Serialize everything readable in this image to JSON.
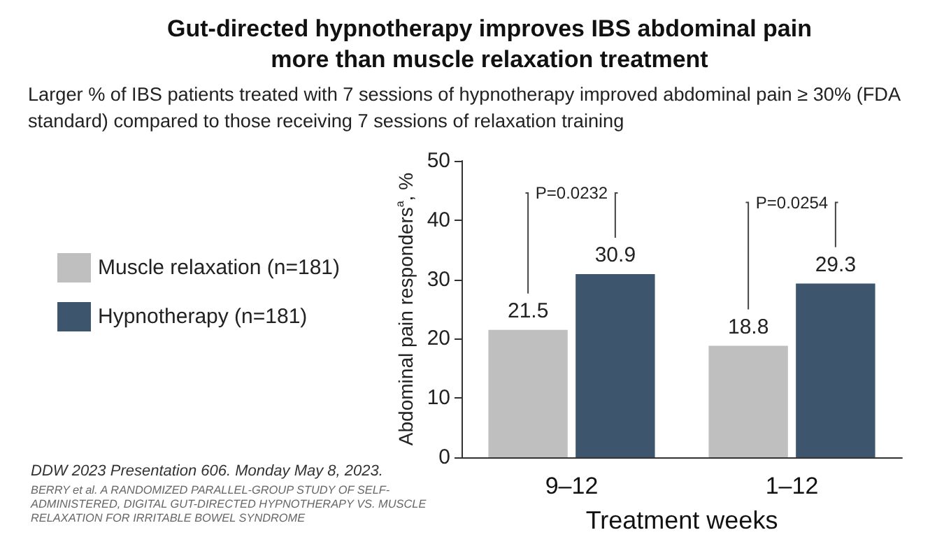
{
  "chart_data": {
    "type": "bar",
    "title": "Gut-directed hypnotherapy improves IBS abdominal pain more than muscle relaxation treatment",
    "subtitle": "Larger % of IBS patients treated with 7 sessions of hypnotherapy improved abdominal pain ≥ 30% (FDA standard) compared to those receiving 7 sessions of relaxation training",
    "xlabel": "Treatment weeks",
    "ylabel": "Abdominal pain responders$^{a}$, %",
    "categories": [
      "9–12",
      "1–12"
    ],
    "series": [
      {
        "name": "Muscle relaxation (n=181)",
        "color": "#bfbfbf",
        "values": [
          21.5,
          18.8
        ]
      },
      {
        "name": "Hypnotherapy (n=181)",
        "color": "#3d566e",
        "values": [
          30.9,
          29.3
        ]
      }
    ],
    "ylim": [
      0,
      50
    ],
    "yticks": [
      0,
      10,
      20,
      30,
      40,
      50
    ],
    "grid": false,
    "legend": "left",
    "data_labels": true,
    "annotations": [
      "P=0.0232",
      "P=0.0254",
      "DDW 2023 Presentation 606. Monday May 8, 2023.",
      "BERRY et al. A RANDOMIZED PARALLEL-GROUP STUDY OF SELF-ADMINISTERED, DIGITAL GUT-DIRECTED HYPNOTHERAPY VS. MUSCLE RELAXATION FOR IRRITABLE BOWEL SYNDROME"
    ]
  }
}
